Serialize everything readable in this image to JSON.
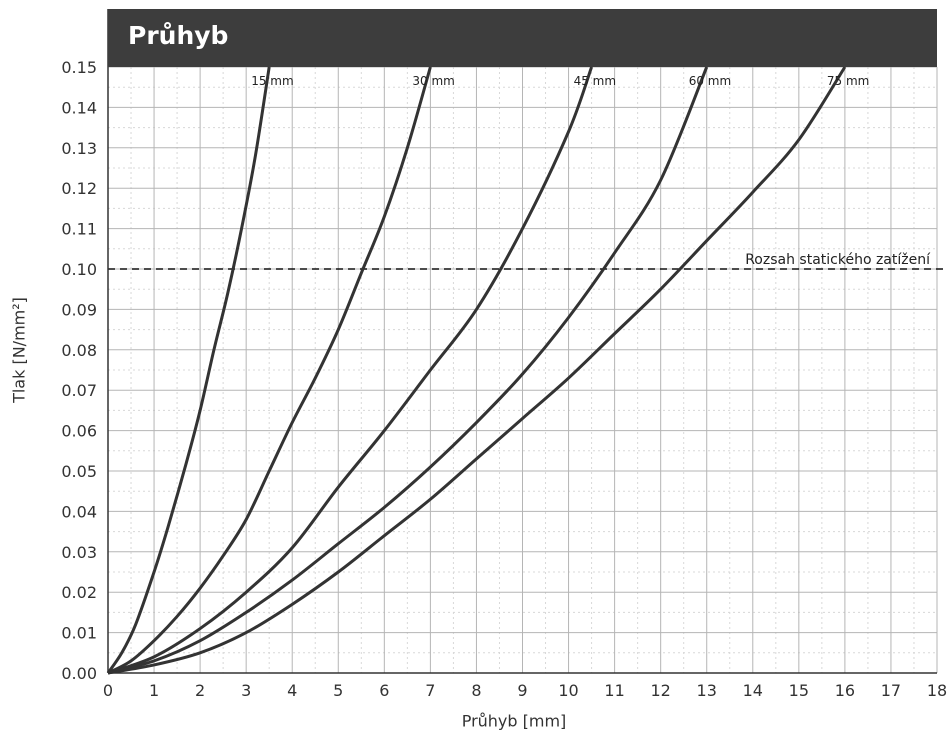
{
  "chart_data": {
    "type": "line",
    "title": "Průhyb",
    "xlabel": "Průhyb [mm]",
    "ylabel": "Tlak [N/mm²]",
    "xlim": [
      0,
      18
    ],
    "ylim": [
      0,
      0.15
    ],
    "x_ticks": [
      "0",
      "1",
      "2",
      "3",
      "4",
      "5",
      "6",
      "7",
      "8",
      "9",
      "10",
      "11",
      "12",
      "13",
      "14",
      "15",
      "16",
      "17",
      "18"
    ],
    "y_ticks": [
      "0.00",
      "0.01",
      "0.02",
      "0.03",
      "0.04",
      "0.05",
      "0.06",
      "0.07",
      "0.08",
      "0.09",
      "0.10",
      "0.11",
      "0.12",
      "0.13",
      "0.14",
      "0.15"
    ],
    "grid": true,
    "reference_line": {
      "y": 0.1,
      "label": "Rozsah statického zatížení",
      "style": "dashed"
    },
    "series": [
      {
        "name": "15 mm",
        "x": [
          0,
          0.3,
          0.6,
          1.0,
          1.3,
          1.7,
          2.0,
          2.3,
          2.6,
          2.9,
          3.2,
          3.5
        ],
        "y": [
          0,
          0.005,
          0.012,
          0.025,
          0.036,
          0.052,
          0.065,
          0.08,
          0.094,
          0.11,
          0.128,
          0.15
        ]
      },
      {
        "name": "30 mm",
        "x": [
          0,
          0.5,
          1.0,
          1.5,
          2.0,
          2.5,
          3.0,
          3.5,
          4.0,
          4.5,
          5.0,
          5.5,
          6.0,
          6.5,
          7.0
        ],
        "y": [
          0,
          0.003,
          0.008,
          0.014,
          0.021,
          0.029,
          0.038,
          0.05,
          0.062,
          0.073,
          0.085,
          0.099,
          0.113,
          0.13,
          0.15
        ]
      },
      {
        "name": "45 mm",
        "x": [
          0,
          1.0,
          2.0,
          3.0,
          4.0,
          5.0,
          6.0,
          7.0,
          8.0,
          9.0,
          10.0,
          10.5
        ],
        "y": [
          0,
          0.004,
          0.011,
          0.02,
          0.031,
          0.046,
          0.06,
          0.075,
          0.09,
          0.11,
          0.134,
          0.15
        ]
      },
      {
        "name": "60 mm",
        "x": [
          0,
          1.0,
          2.0,
          3.0,
          4.0,
          5.0,
          6.0,
          7.0,
          8.0,
          9.0,
          10.0,
          11.0,
          12.0,
          13.0
        ],
        "y": [
          0,
          0.003,
          0.008,
          0.015,
          0.023,
          0.032,
          0.041,
          0.051,
          0.062,
          0.074,
          0.088,
          0.104,
          0.122,
          0.15
        ]
      },
      {
        "name": "75 mm",
        "x": [
          0,
          1.0,
          2.0,
          3.0,
          4.0,
          5.0,
          6.0,
          7.0,
          8.0,
          9.0,
          10.0,
          11.0,
          12.0,
          13.0,
          14.0,
          15.0,
          16.0
        ],
        "y": [
          0,
          0.002,
          0.005,
          0.01,
          0.017,
          0.025,
          0.034,
          0.043,
          0.053,
          0.063,
          0.073,
          0.084,
          0.095,
          0.107,
          0.119,
          0.132,
          0.15
        ]
      }
    ],
    "colors": {
      "line": "#333333",
      "grid": "#b5b5b5",
      "grid_minor": "#d8d8d8",
      "title_bg": "#3d3d3d",
      "title_fg": "#ffffff"
    }
  }
}
